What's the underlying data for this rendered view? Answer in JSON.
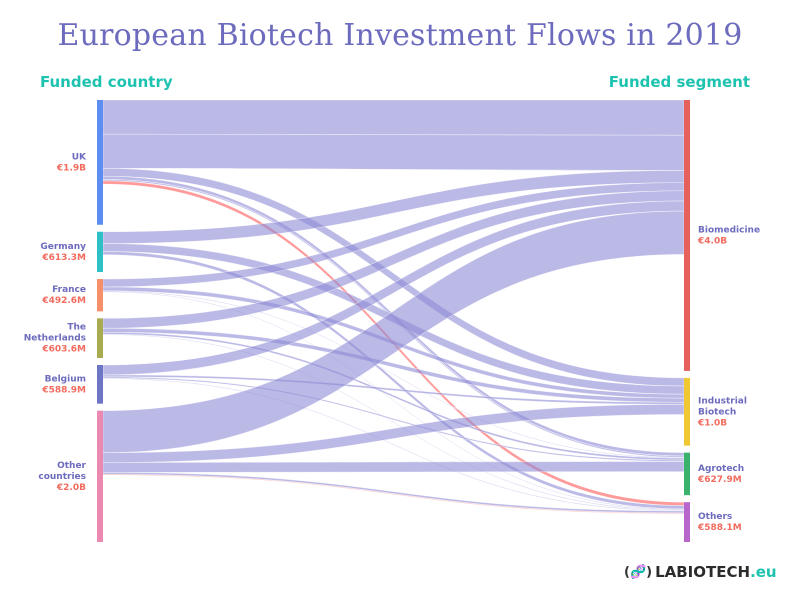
{
  "title": "European Biotech Investment Flows in 2019",
  "left_header": "Funded country",
  "right_header": "Funded segment",
  "logo": {
    "icon": "dna-icon",
    "brand": "LABIOTECH",
    "tld": ".eu"
  },
  "colors": {
    "link": "#8d8bd6",
    "uk_others_link": "#ff8f8f",
    "title": "#6d6bbd",
    "header": "#1ec3b0",
    "value_text": "#f26b5e"
  },
  "chart_data": {
    "type": "sankey",
    "title": "European Biotech Investment Flows in 2019",
    "units": "EUR",
    "sources": [
      {
        "id": "uk",
        "name": "UK",
        "value_label": "€1.9B",
        "value": 1.9,
        "color": "#5b8ef0"
      },
      {
        "id": "germany",
        "name": "Germany",
        "value_label": "€613.3M",
        "value": 0.6133,
        "color": "#2fc0c6"
      },
      {
        "id": "france",
        "name": "France",
        "value_label": "€492.6M",
        "value": 0.4926,
        "color": "#f5906a"
      },
      {
        "id": "netherlands",
        "name": "The Netherlands",
        "value_label": "€603.6M",
        "value": 0.6036,
        "color": "#a8ab4f"
      },
      {
        "id": "belgium",
        "name": "Belgium",
        "value_label": "€588.9M",
        "value": 0.5889,
        "color": "#6c76c4"
      },
      {
        "id": "other",
        "name": "Other countries",
        "value_label": "€2.0B",
        "value": 2.0,
        "color": "#ec89b0"
      }
    ],
    "targets": [
      {
        "id": "biomedicine",
        "name": "Biomedicine",
        "value_label": "€4.0B",
        "value": 4.0,
        "color": "#e6605c"
      },
      {
        "id": "industrial",
        "name": "Industrial Biotech",
        "value_label": "€1.0B",
        "value": 1.0,
        "color": "#f2c832"
      },
      {
        "id": "agrotech",
        "name": "Agrotech",
        "value_label": "€627.9M",
        "value": 0.6279,
        "color": "#3ab26c"
      },
      {
        "id": "others",
        "name": "Others",
        "value_label": "€588.1M",
        "value": 0.5881,
        "color": "#b866cc"
      }
    ],
    "flows": [
      {
        "source": "uk",
        "target": "biomedicine",
        "value": 0.52
      },
      {
        "source": "uk",
        "target": "biomedicine",
        "value": 0.52
      },
      {
        "source": "uk",
        "target": "industrial",
        "value": 0.12
      },
      {
        "source": "uk",
        "target": "agrotech",
        "value": 0.05
      },
      {
        "source": "uk",
        "target": "agrotech",
        "value": 0.02
      },
      {
        "source": "uk",
        "target": "others",
        "value": 0.05
      },
      {
        "source": "germany",
        "target": "biomedicine",
        "value": 0.18
      },
      {
        "source": "germany",
        "target": "industrial",
        "value": 0.12
      },
      {
        "source": "germany",
        "target": "others",
        "value": 0.05
      },
      {
        "source": "france",
        "target": "biomedicine",
        "value": 0.12
      },
      {
        "source": "france",
        "target": "industrial",
        "value": 0.06
      },
      {
        "source": "france",
        "target": "agrotech",
        "value": 0.01
      },
      {
        "source": "france",
        "target": "others",
        "value": 0.01
      },
      {
        "source": "netherlands",
        "target": "biomedicine",
        "value": 0.15
      },
      {
        "source": "netherlands",
        "target": "industrial",
        "value": 0.06
      },
      {
        "source": "netherlands",
        "target": "agrotech",
        "value": 0.03
      },
      {
        "source": "netherlands",
        "target": "others",
        "value": 0.01
      },
      {
        "source": "belgium",
        "target": "biomedicine",
        "value": 0.15
      },
      {
        "source": "belgium",
        "target": "industrial",
        "value": 0.03
      },
      {
        "source": "belgium",
        "target": "agrotech",
        "value": 0.02
      },
      {
        "source": "belgium",
        "target": "others",
        "value": 0.01
      },
      {
        "source": "other",
        "target": "biomedicine",
        "value": 0.64
      },
      {
        "source": "other",
        "target": "industrial",
        "value": 0.15
      },
      {
        "source": "other",
        "target": "agrotech",
        "value": 0.15
      },
      {
        "source": "other",
        "target": "others",
        "value": 0.03
      },
      {
        "source": "other",
        "target": "others",
        "value": 0.01
      }
    ]
  }
}
